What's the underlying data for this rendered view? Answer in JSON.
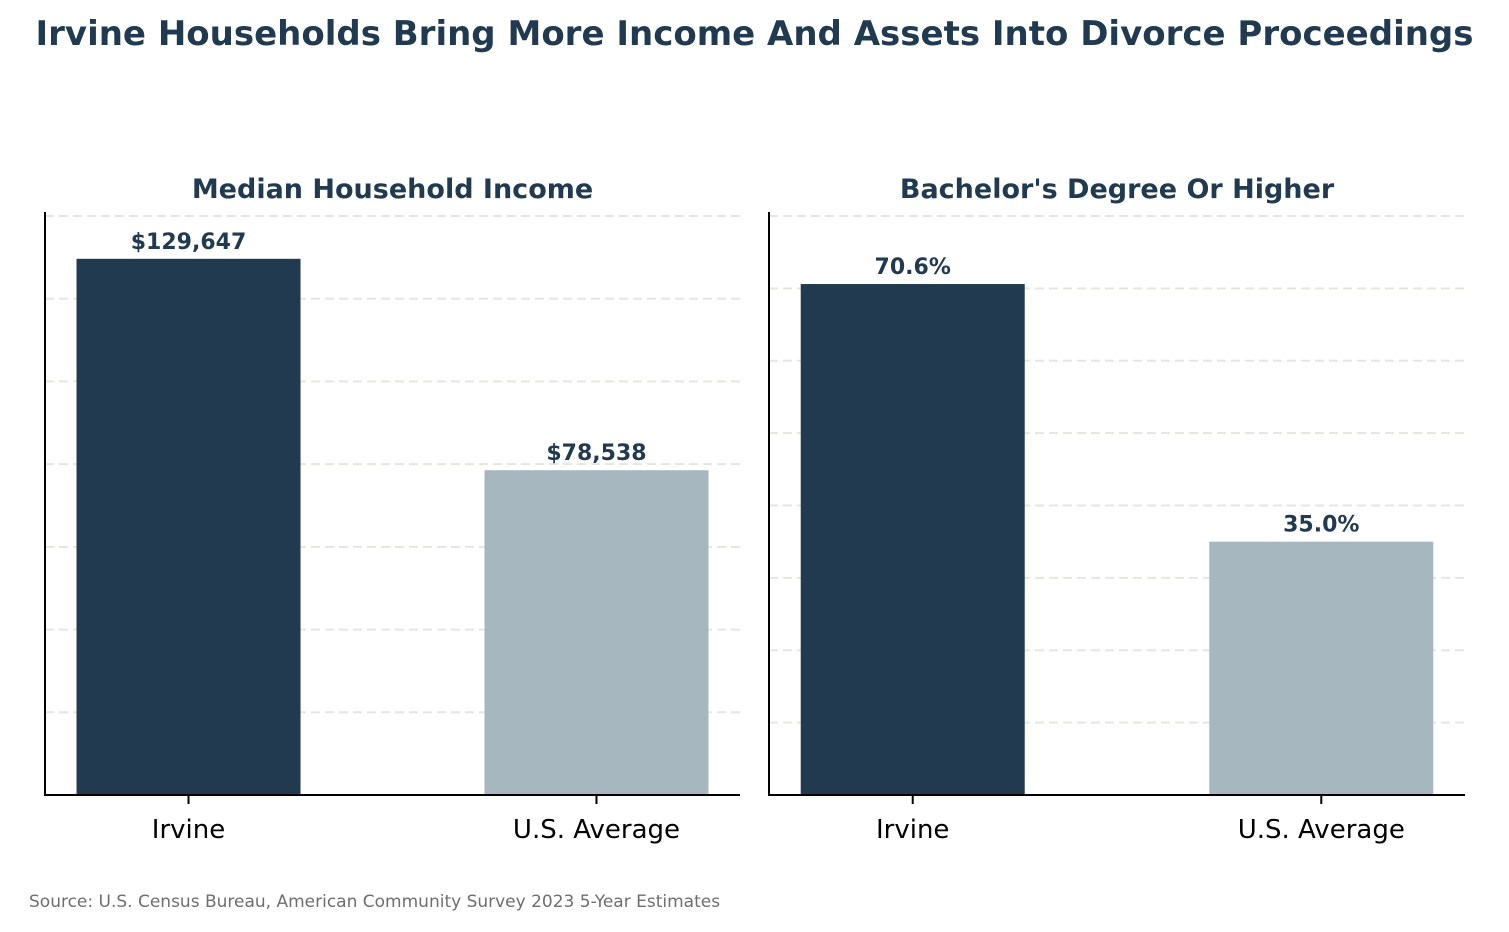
{
  "title": "Irvine Households Bring More Income And Assets Into Divorce Proceedings",
  "source": "Source: U.S. Census Bureau, American Community Survey 2023 5-Year Estimates",
  "colors": {
    "irvine": "#213a4f",
    "us_average": "#a7b7c0",
    "title": "#213a4f",
    "grid": "#e6e6e1"
  },
  "chart_data": [
    {
      "type": "bar",
      "title": "Median Household Income",
      "categories": [
        "Irvine",
        "U.S. Average"
      ],
      "values": [
        129647,
        78538
      ],
      "value_labels": [
        "$129,647",
        "$78,538"
      ],
      "ylim": [
        0,
        140000
      ],
      "grid": true,
      "grid_ticks": [
        20000,
        40000,
        60000,
        80000,
        100000,
        120000,
        140000
      ],
      "xlabel": "",
      "ylabel": ""
    },
    {
      "type": "bar",
      "title": "Bachelor's Degree Or Higher",
      "categories": [
        "Irvine",
        "U.S. Average"
      ],
      "values": [
        70.6,
        35.0
      ],
      "value_labels": [
        "70.6%",
        "35.0%"
      ],
      "ylim": [
        0,
        80
      ],
      "grid": true,
      "grid_ticks": [
        10,
        20,
        30,
        40,
        50,
        60,
        70,
        80
      ],
      "xlabel": "",
      "ylabel": ""
    }
  ]
}
